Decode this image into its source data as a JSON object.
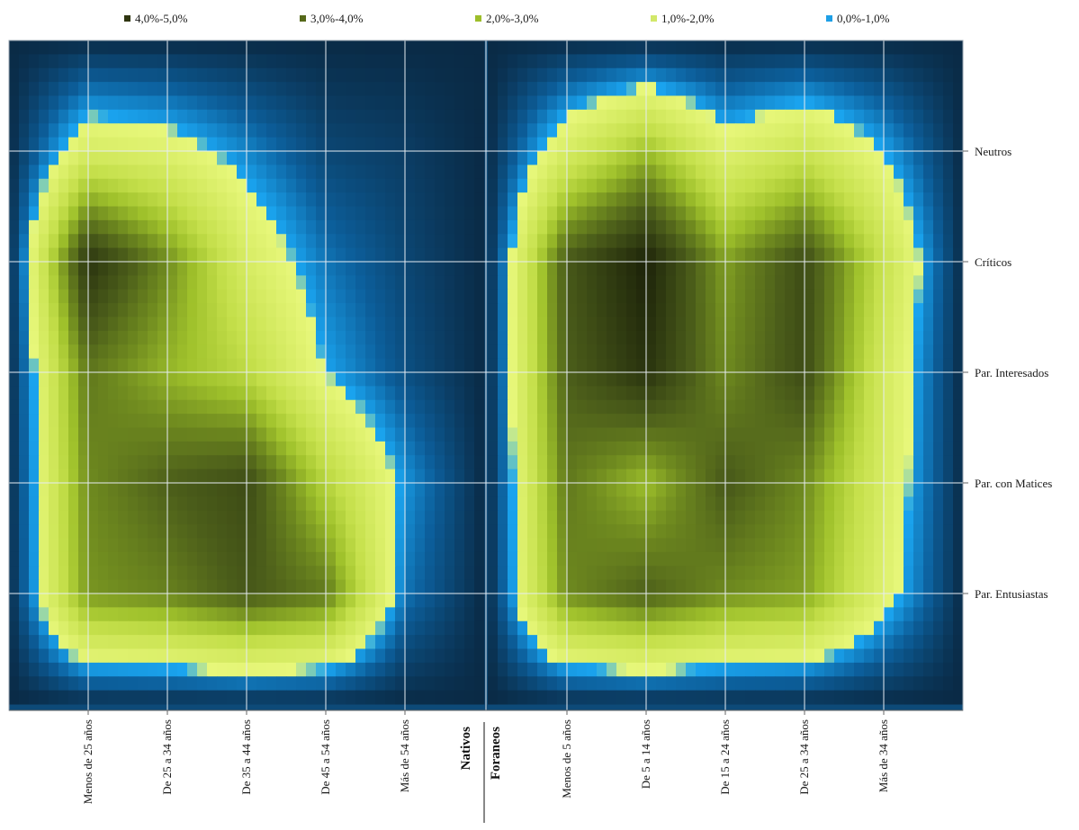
{
  "chart_data": {
    "type": "heatmap",
    "legend": [
      {
        "label": "4,0%-5,0%",
        "color": "#2f3510"
      },
      {
        "label": "3,0%-4,0%",
        "color": "#56691a"
      },
      {
        "label": "2,0%-3,0%",
        "color": "#9dbe2a"
      },
      {
        "label": "1,0%-2,0%",
        "color": "#d2e86a"
      },
      {
        "label": "0,0%-1,0%",
        "color": "#1e9fe6"
      }
    ],
    "legend_position": "top",
    "y_categories": [
      "Neutros",
      "Críticos",
      "Par. Interesados",
      "Par. con Matices",
      "Par. Entusiastas"
    ],
    "groups": [
      {
        "name": "Nativos",
        "x_categories": [
          "Menos de 25 años",
          "De 25 a 34 años",
          "De 35 a 44 años",
          "De 45 a 54 años",
          "Más de 54 años"
        ],
        "values": [
          [
            1.5,
            1.3,
            0.8,
            0.3,
            0.2
          ],
          [
            4.2,
            3.0,
            1.5,
            0.7,
            0.3
          ],
          [
            3.2,
            2.6,
            2.1,
            1.0,
            0.4
          ],
          [
            3.0,
            3.5,
            3.8,
            2.2,
            0.9
          ],
          [
            2.9,
            3.1,
            3.6,
            3.2,
            0.7
          ]
        ]
      },
      {
        "name": "Foraneos",
        "x_categories": [
          "Menos de 5 años",
          "De 5 a 14 años",
          "De 15 a 24 años",
          "De 25 a 34 años",
          "Más de 34 años"
        ],
        "values": [
          [
            1.5,
            2.5,
            1.3,
            1.8,
            1.0
          ],
          [
            3.6,
            4.5,
            2.8,
            3.8,
            1.9
          ],
          [
            3.5,
            4.2,
            3.0,
            3.8,
            1.6
          ],
          [
            3.2,
            2.5,
            3.6,
            3.0,
            1.5
          ],
          [
            3.0,
            3.5,
            3.0,
            2.8,
            1.3
          ]
        ]
      }
    ]
  }
}
